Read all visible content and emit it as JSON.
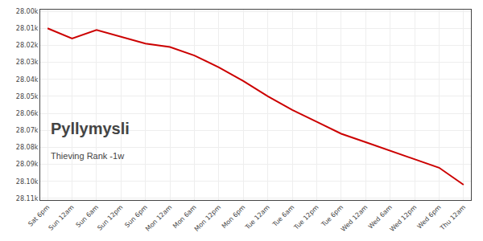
{
  "chart_data": {
    "type": "line",
    "title": "Pyllymysli",
    "subtitle": "Thieving Rank -1w",
    "categories": [
      "Sat 6pm",
      "Sun 12am",
      "Sun 6am",
      "Sun 12pm",
      "Sun 6pm",
      "Mon 12am",
      "Mon 6am",
      "Mon 12pm",
      "Mon 6pm",
      "Tue 12am",
      "Tue 6am",
      "Tue 12pm",
      "Tue 6pm",
      "Wed 12am",
      "Wed 6am",
      "Wed 12pm",
      "Wed 6pm",
      "Thu 12am"
    ],
    "values": [
      28010,
      28016,
      28011,
      28015,
      28019,
      28021,
      28026,
      28033,
      28041,
      28050,
      28058,
      28065,
      28072,
      28077,
      28082,
      28087,
      28092,
      28102
    ],
    "color": "#cc0000",
    "ylim": [
      28111,
      27999
    ],
    "yticks": [
      {
        "value": 28000,
        "label": "28.00k"
      },
      {
        "value": 28010,
        "label": "28.01k"
      },
      {
        "value": 28020,
        "label": "28.02k"
      },
      {
        "value": 28030,
        "label": "28.03k"
      },
      {
        "value": 28040,
        "label": "28.04k"
      },
      {
        "value": 28050,
        "label": "28.05k"
      },
      {
        "value": 28060,
        "label": "28.06k"
      },
      {
        "value": 28070,
        "label": "28.07k"
      },
      {
        "value": 28080,
        "label": "28.08k"
      },
      {
        "value": 28090,
        "label": "28.09k"
      },
      {
        "value": 28100,
        "label": "28.10k"
      },
      {
        "value": 28110,
        "label": "28.11k"
      }
    ],
    "grid": true
  }
}
